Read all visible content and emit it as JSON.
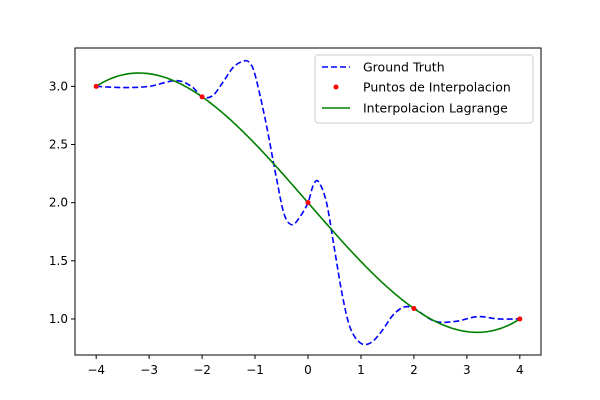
{
  "chart_data": {
    "type": "line",
    "title": "",
    "xlabel": "",
    "ylabel": "",
    "xlim": [
      -4.4,
      4.4
    ],
    "ylim": [
      0.69,
      3.33
    ],
    "x_ticks": [
      -4,
      -3,
      -2,
      -1,
      0,
      1,
      2,
      3,
      4
    ],
    "x_tick_labels": [
      "−4",
      "−3",
      "−2",
      "−1",
      "0",
      "1",
      "2",
      "3",
      "4"
    ],
    "y_ticks": [
      1.0,
      1.5,
      2.0,
      2.5,
      3.0
    ],
    "y_tick_labels": [
      "1.0",
      "1.5",
      "2.0",
      "2.5",
      "3.0"
    ],
    "grid": false,
    "legend_position": "top-right",
    "series": [
      {
        "name": "Ground Truth",
        "style": "dashed",
        "color": "#0000ff",
        "x": [
          -4.0,
          -3.5,
          -3.0,
          -2.5,
          -2.2,
          -2.0,
          -1.8,
          -1.6,
          -1.4,
          -1.2,
          -1.1,
          -1.0,
          -0.8,
          -0.6,
          -0.45,
          -0.3,
          -0.15,
          0.0,
          0.1,
          0.2,
          0.35,
          0.5,
          0.65,
          0.8,
          1.0,
          1.2,
          1.4,
          1.6,
          1.8,
          2.0,
          2.4,
          2.8,
          3.2,
          3.6,
          4.0
        ],
        "y": [
          3.0,
          2.99,
          3.0,
          3.05,
          3.0,
          2.91,
          2.92,
          3.04,
          3.17,
          3.22,
          3.2,
          3.1,
          2.7,
          2.22,
          1.9,
          1.81,
          1.88,
          2.0,
          2.15,
          2.18,
          2.0,
          1.6,
          1.2,
          0.92,
          0.79,
          0.8,
          0.9,
          1.03,
          1.1,
          1.09,
          0.98,
          0.98,
          1.02,
          1.0,
          1.0
        ]
      },
      {
        "name": "Puntos de Interpolacion",
        "style": "scatter",
        "color": "#ff0000",
        "x": [
          -4,
          -2,
          0,
          2,
          4
        ],
        "y": [
          3.0,
          2.91,
          2.0,
          1.09,
          1.0
        ]
      },
      {
        "name": "Interpolacion Lagrange",
        "style": "solid",
        "color": "#008000",
        "x": [
          -4,
          4
        ],
        "y": [
          3.0,
          1.0
        ],
        "nodes": [
          [
            -4,
            3.0
          ],
          [
            -2,
            2.91
          ],
          [
            0,
            2.0
          ],
          [
            2,
            1.09
          ],
          [
            4,
            1.0
          ]
        ]
      }
    ]
  }
}
